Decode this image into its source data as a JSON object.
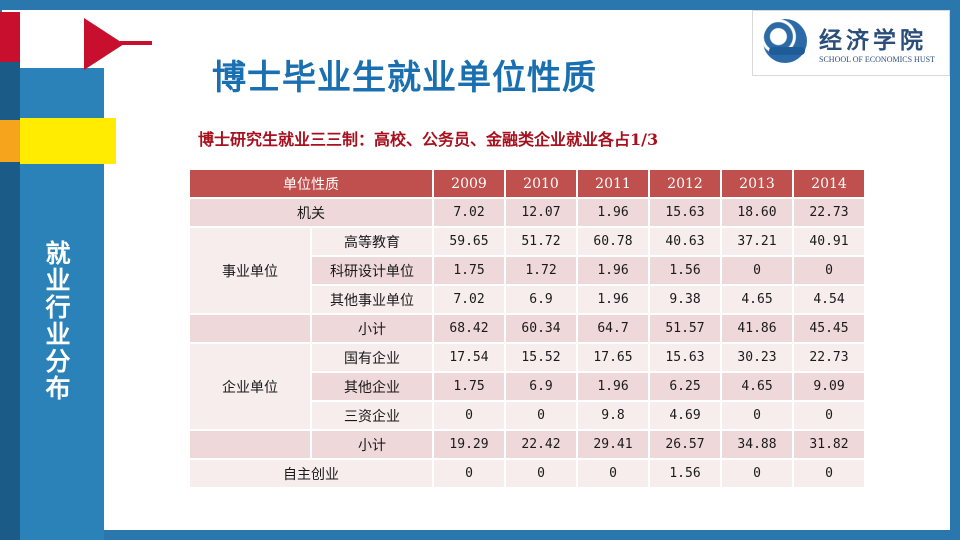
{
  "title": "博士毕业生就业单位性质",
  "subtitle": "博士研究生就业三三制：高校、公务员、金融类企业就业各占1/3",
  "sidebar": {
    "heading_chars": [
      "就",
      "业",
      "行",
      "业",
      "分",
      "布"
    ]
  },
  "logo": {
    "name_cn": "经济学院",
    "name_en": "SCHOOL OF ECONOMICS HUST"
  },
  "table": {
    "header": {
      "category": "单位性质",
      "years": [
        "2009",
        "2010",
        "2011",
        "2012",
        "2013",
        "2014"
      ]
    },
    "rows": {
      "jiguan": {
        "label": "机关",
        "values": [
          "7.02",
          "12.07",
          "1.96",
          "15.63",
          "18.60",
          "22.73"
        ]
      },
      "shiye": {
        "group": "事业单位",
        "gaodeng": {
          "label": "高等教育",
          "values": [
            "59.65",
            "51.72",
            "60.78",
            "40.63",
            "37.21",
            "40.91"
          ]
        },
        "keyan": {
          "label": "科研设计单位",
          "values": [
            "1.75",
            "1.72",
            "1.96",
            "1.56",
            "0",
            "0"
          ]
        },
        "qita": {
          "label": "其他事业单位",
          "values": [
            "7.02",
            "6.9",
            "1.96",
            "9.38",
            "4.65",
            "4.54"
          ]
        },
        "subtotal": {
          "label": "小计",
          "values": [
            "68.42",
            "60.34",
            "64.7",
            "51.57",
            "41.86",
            "45.45"
          ]
        }
      },
      "qiye": {
        "group": "企业单位",
        "guoyou": {
          "label": "国有企业",
          "values": [
            "17.54",
            "15.52",
            "17.65",
            "15.63",
            "30.23",
            "22.73"
          ]
        },
        "qita": {
          "label": "其他企业",
          "values": [
            "1.75",
            "6.9",
            "1.96",
            "6.25",
            "4.65",
            "9.09"
          ]
        },
        "sanzi": {
          "label": "三资企业",
          "values": [
            "0",
            "0",
            "9.8",
            "4.69",
            "0",
            "0"
          ]
        },
        "subtotal": {
          "label": "小计",
          "values": [
            "19.29",
            "22.42",
            "29.41",
            "26.57",
            "34.88",
            "31.82"
          ]
        }
      },
      "zizhu": {
        "label": "自主创业",
        "values": [
          "0",
          "0",
          "0",
          "1.56",
          "0",
          "0"
        ]
      }
    }
  }
}
